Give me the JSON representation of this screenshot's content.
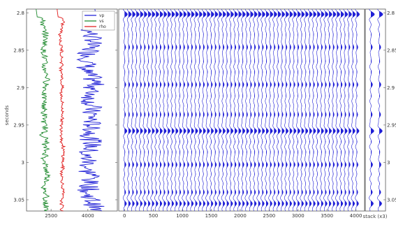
{
  "chart_data": [
    {
      "type": "line",
      "ylabel": "seconds",
      "xlabel": "",
      "ylim": [
        2.795,
        3.065
      ],
      "y_reversed": true,
      "xlim": [
        1500,
        5200
      ],
      "xticks": [
        2500,
        4000
      ],
      "xtick_labels": [
        "2500",
        "4000"
      ],
      "yticks": [
        2.8,
        2.85,
        2.9,
        2.95,
        3.0,
        3.05
      ],
      "ytick_labels": [
        "2.8",
        "2.85",
        "2.9",
        "2.95",
        "3",
        "3.05"
      ],
      "legend_position": "top-right",
      "series": [
        {
          "name": "vp",
          "color": "#1f1fd6",
          "base": 4200,
          "amp": 650
        },
        {
          "name": "vs",
          "color": "#1f8a2e",
          "base": 2250,
          "amp": 350
        },
        {
          "name": "rho",
          "color": "#e01a1a",
          "base": 2950,
          "amp": 180
        }
      ]
    },
    {
      "type": "line",
      "subtype": "seismic-wiggle",
      "ylabel": "",
      "xlabel": "",
      "ylim": [
        2.795,
        3.065
      ],
      "y_reversed": true,
      "xlim": [
        -100,
        4150
      ],
      "xticks": [
        0,
        500,
        1000,
        1500,
        2000,
        2500,
        3000,
        3500,
        4000
      ],
      "xtick_labels": [
        "0",
        "500",
        "1000",
        "1500",
        "2000",
        "2500",
        "3000",
        "3500",
        "4000"
      ],
      "yticks": [
        2.8,
        2.85,
        2.9,
        2.95,
        3.0,
        3.05
      ],
      "ytick_labels": [
        "2.8",
        "2.85",
        "2.9",
        "2.95",
        "3",
        "3.05"
      ],
      "trace_color": "#1f1fd6",
      "trace_count": 60,
      "trace_spacing": 68
    },
    {
      "type": "line",
      "subtype": "seismic-wiggle",
      "xlabel": "stack (x3)",
      "ylim": [
        2.795,
        3.065
      ],
      "y_reversed": true,
      "trace_color": "#1f1fd6",
      "trace_count": 2
    }
  ]
}
